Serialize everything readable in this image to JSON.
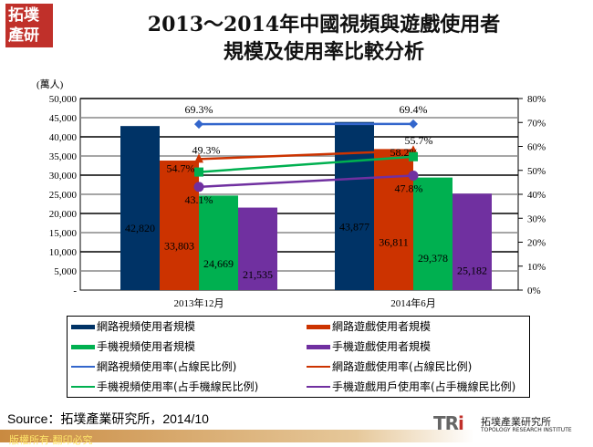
{
  "logo": {
    "text": "拓墣產研"
  },
  "title": {
    "line1": "2013～2014年中國視頻與遊戲使用者",
    "line2": "規模及使用率比較分析"
  },
  "chart_data": {
    "type": "bar+line",
    "categories": [
      "2013年12月",
      "2014年6月"
    ],
    "ylabel": "(萬人)",
    "ylim": [
      0,
      50000
    ],
    "y2lim": [
      0,
      80
    ],
    "yticks": [
      "-",
      "5,000",
      "10,000",
      "15,000",
      "20,000",
      "25,000",
      "30,000",
      "35,000",
      "40,000",
      "45,000",
      "50,000"
    ],
    "y2ticks": [
      "0%",
      "10%",
      "20%",
      "30%",
      "40%",
      "50%",
      "60%",
      "70%",
      "80%"
    ],
    "grid": true,
    "legend_position": "bottom",
    "bar_series": [
      {
        "name": "網路視頻使用者規模",
        "values": [
          42820,
          43877
        ],
        "labels": [
          "42,820",
          "43,877"
        ],
        "color": "#003366"
      },
      {
        "name": "網路遊戲使用者規模",
        "values": [
          33803,
          36811
        ],
        "labels": [
          "33,803",
          "36,811"
        ],
        "color": "#cc3300"
      },
      {
        "name": "手機視頻使用者規模",
        "values": [
          24669,
          29378
        ],
        "labels": [
          "24,669",
          "29,378"
        ],
        "color": "#00b050"
      },
      {
        "name": "手機遊戲使用者規模",
        "values": [
          21535,
          25182
        ],
        "labels": [
          "21,535",
          "25,182"
        ],
        "color": "#7030a0"
      }
    ],
    "line_series": [
      {
        "name": "網路視頻使用率(占線民比例)",
        "values": [
          69.3,
          69.4
        ],
        "labels": [
          "69.3%",
          "69.4%"
        ],
        "color": "#3366cc",
        "marker": "diamond"
      },
      {
        "name": "網路遊戲使用率(占線民比例)",
        "values": [
          54.7,
          58.2
        ],
        "labels": [
          "54.7%",
          "58.2%"
        ],
        "color": "#cc3300",
        "marker": "triangle"
      },
      {
        "name": "手機視頻使用率(占手機線民比例)",
        "values": [
          49.3,
          55.7
        ],
        "labels": [
          "49.3%",
          "55.7%"
        ],
        "color": "#00b050",
        "marker": "square"
      },
      {
        "name": "手機遊戲用戶使用率(占手機線民比例)",
        "values": [
          43.1,
          47.8
        ],
        "labels": [
          "43.1%",
          "47.8%"
        ],
        "color": "#7030a0",
        "marker": "circle"
      }
    ]
  },
  "source": "Source：拓墣產業研究所，2014/10",
  "footer": "版權所有‧翻印必究",
  "brand": {
    "mark": "TRi",
    "name": "拓墣產業研究所",
    "english": "TOPOLOGY RESEARCH INSTITUTE"
  }
}
